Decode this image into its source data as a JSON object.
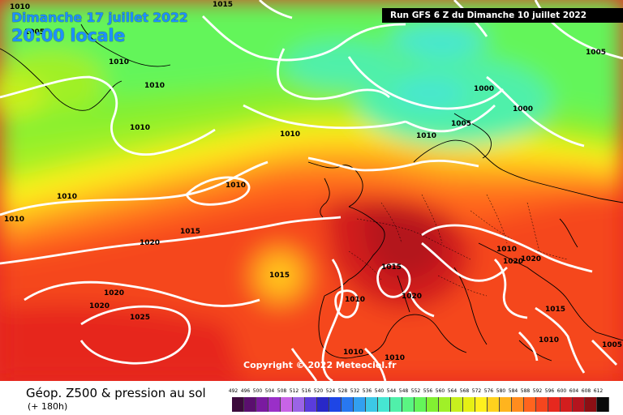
{
  "header": {
    "date": "Dimanche 17 juillet 2022",
    "time": "20:00 locale",
    "run": "Run GFS 6 Z du Dimanche 10 juillet 2022"
  },
  "copyright": "Copyright © 2022 Meteociel.fr",
  "legend": {
    "title": "Géop. Z500 & pression au sol",
    "subtitle": "(+ 180h)",
    "scale": [
      {
        "label": "492",
        "color": "#3c0a3c"
      },
      {
        "label": "496",
        "color": "#5a0f6e"
      },
      {
        "label": "500",
        "color": "#7a1aa0"
      },
      {
        "label": "504",
        "color": "#9a2fc8"
      },
      {
        "label": "508",
        "color": "#c864e6"
      },
      {
        "label": "512",
        "color": "#9b64e6"
      },
      {
        "label": "516",
        "color": "#5a3cdc"
      },
      {
        "label": "520",
        "color": "#2828c8"
      },
      {
        "label": "524",
        "color": "#1e46e6"
      },
      {
        "label": "528",
        "color": "#2878f0"
      },
      {
        "label": "532",
        "color": "#32a0f0"
      },
      {
        "label": "536",
        "color": "#3cc8e6"
      },
      {
        "label": "540",
        "color": "#46e6d2"
      },
      {
        "label": "544",
        "color": "#50f0aa"
      },
      {
        "label": "548",
        "color": "#5af582"
      },
      {
        "label": "552",
        "color": "#64f55a"
      },
      {
        "label": "556",
        "color": "#82f032"
      },
      {
        "label": "560",
        "color": "#a0f028"
      },
      {
        "label": "564",
        "color": "#c8f01e"
      },
      {
        "label": "568",
        "color": "#e6f014"
      },
      {
        "label": "572",
        "color": "#fff01e"
      },
      {
        "label": "576",
        "color": "#ffd21e"
      },
      {
        "label": "580",
        "color": "#ffb41e"
      },
      {
        "label": "584",
        "color": "#ff8c1e"
      },
      {
        "label": "588",
        "color": "#ff641e"
      },
      {
        "label": "592",
        "color": "#f5461e"
      },
      {
        "label": "596",
        "color": "#e6281e"
      },
      {
        "label": "600",
        "color": "#d21e1e"
      },
      {
        "label": "604",
        "color": "#b4141e"
      },
      {
        "label": "608",
        "color": "#8c0f14"
      },
      {
        "label": "612",
        "color": "#0a0a0a"
      }
    ]
  },
  "pressure_labels": [
    {
      "text": "1010",
      "pos": "top-left coast"
    },
    {
      "text": "1015",
      "pos": "top center-left"
    },
    {
      "text": "1005",
      "pos": "top left"
    },
    {
      "text": "1010"
    },
    {
      "text": "1010"
    },
    {
      "text": "1010"
    },
    {
      "text": "1010"
    },
    {
      "text": "1010"
    },
    {
      "text": "1010"
    },
    {
      "text": "1010"
    },
    {
      "text": "1020"
    },
    {
      "text": "1015"
    },
    {
      "text": "1015"
    },
    {
      "text": "1020"
    },
    {
      "text": "1020"
    },
    {
      "text": "1025"
    },
    {
      "text": "1010"
    },
    {
      "text": "1015"
    },
    {
      "text": "1020"
    },
    {
      "text": "1010"
    },
    {
      "text": "1010"
    },
    {
      "text": "1000"
    },
    {
      "text": "1005"
    },
    {
      "text": "1010"
    },
    {
      "text": "1000"
    },
    {
      "text": "1005"
    },
    {
      "text": "1020"
    },
    {
      "text": "1020"
    },
    {
      "text": "1015"
    },
    {
      "text": "1010"
    },
    {
      "text": "1005"
    },
    {
      "text": "1010"
    }
  ]
}
